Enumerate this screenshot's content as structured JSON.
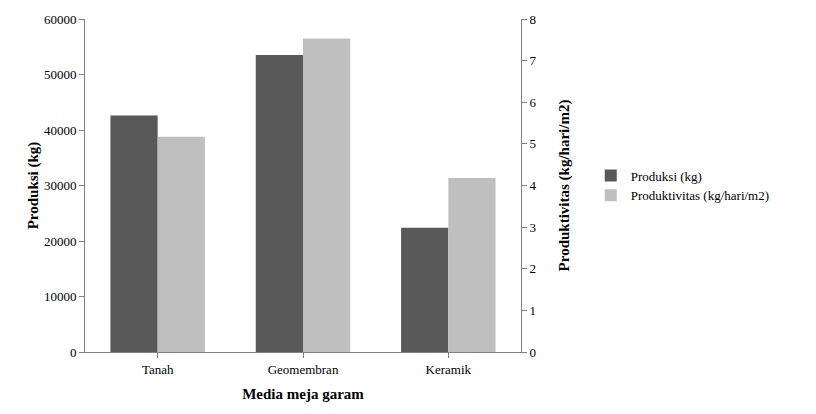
{
  "chart_data": {
    "type": "bar",
    "categories": [
      "Tanah",
      "Geomembran",
      "Keramik"
    ],
    "x_label": "Media meja garam",
    "y_label": "Produksi (kg)",
    "y2_label": "Produktivitas (kg/hari/m2)",
    "series": [
      {
        "name": "Produksi (kg)",
        "color": "#595959",
        "values": [
          42600,
          53500,
          22400
        ]
      },
      {
        "name": "Produktivitas (kg/hari/m2)",
        "color": "#bfbfbf",
        "values": [
          5.17,
          7.53,
          4.18
        ],
        "axis": "y2"
      }
    ],
    "ylim": [
      0,
      60000
    ],
    "yticks": [
      0,
      10000,
      20000,
      30000,
      40000,
      50000,
      60000
    ],
    "y2lim": [
      0,
      8
    ],
    "y2ticks": [
      0,
      1,
      2,
      3,
      4,
      5,
      6,
      7,
      8
    ],
    "grid": false,
    "legend": "right"
  }
}
